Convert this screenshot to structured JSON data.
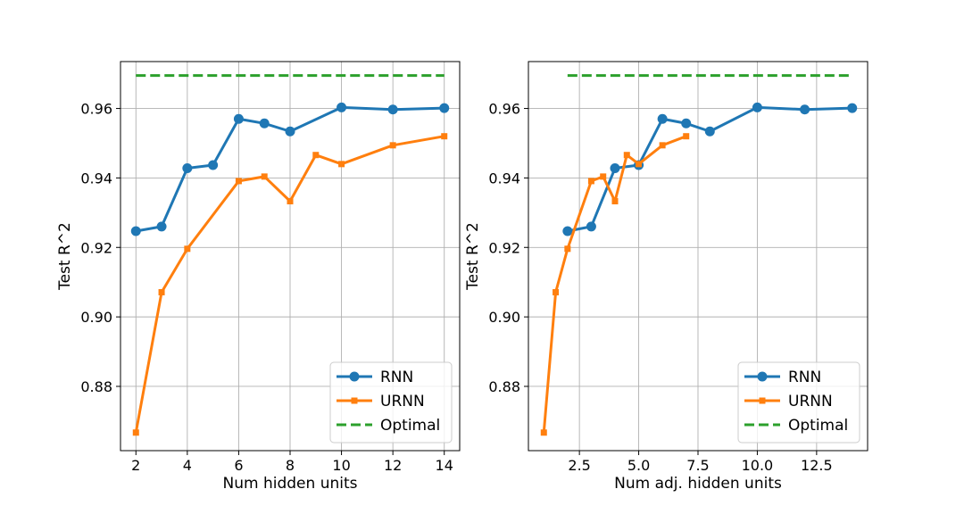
{
  "colors": {
    "rnn": "#1f77b4",
    "urnn": "#ff7f0e",
    "optimal": "#2ca02c",
    "grid": "#b0b0b0",
    "axes": "#000000"
  },
  "chart_data": [
    {
      "type": "line",
      "xlabel": "Num hidden units",
      "ylabel": "Test R^2",
      "xlim": [
        1.4,
        14.6
      ],
      "ylim": [
        0.8615,
        0.9735
      ],
      "xticks": [
        2,
        4,
        6,
        8,
        10,
        12,
        14
      ],
      "xtick_labels": [
        "2",
        "4",
        "6",
        "8",
        "10",
        "12",
        "14"
      ],
      "yticks": [
        0.88,
        0.9,
        0.92,
        0.94,
        0.96
      ],
      "ytick_labels": [
        "0.88",
        "0.90",
        "0.92",
        "0.94",
        "0.96"
      ],
      "grid": true,
      "legend_position": "lower-right",
      "series": [
        {
          "name": "RNN",
          "style": "solid-circle",
          "color": "#1f77b4",
          "x": [
            2,
            3,
            4,
            5,
            6,
            7,
            8,
            10,
            12,
            14
          ],
          "y": [
            0.9247,
            0.926,
            0.9428,
            0.9437,
            0.957,
            0.9557,
            0.9534,
            0.9603,
            0.9597,
            0.9601
          ]
        },
        {
          "name": "URNN",
          "style": "solid-square",
          "color": "#ff7f0e",
          "x": [
            2,
            3,
            4,
            6,
            7,
            8,
            9,
            10,
            12,
            14
          ],
          "y": [
            0.8667,
            0.9071,
            0.9196,
            0.9391,
            0.9404,
            0.9333,
            0.9466,
            0.944,
            0.9494,
            0.952
          ]
        },
        {
          "name": "Optimal",
          "style": "dashed",
          "color": "#2ca02c",
          "x": [
            2,
            14
          ],
          "y": [
            0.9695,
            0.9695
          ]
        }
      ]
    },
    {
      "type": "line",
      "xlabel": "Num adj. hidden units",
      "ylabel": "Test R^2",
      "xlim": [
        0.35,
        14.65
      ],
      "ylim": [
        0.8615,
        0.9735
      ],
      "xticks": [
        2.5,
        5.0,
        7.5,
        10.0,
        12.5
      ],
      "xtick_labels": [
        "2.5",
        "5.0",
        "7.5",
        "10.0",
        "12.5"
      ],
      "yticks": [
        0.88,
        0.9,
        0.92,
        0.94,
        0.96
      ],
      "ytick_labels": [
        "0.88",
        "0.90",
        "0.92",
        "0.94",
        "0.96"
      ],
      "grid": true,
      "legend_position": "lower-right",
      "series": [
        {
          "name": "RNN",
          "style": "solid-circle",
          "color": "#1f77b4",
          "x": [
            2,
            3,
            4,
            5,
            6,
            7,
            8,
            10,
            12,
            14
          ],
          "y": [
            0.9247,
            0.926,
            0.9428,
            0.9437,
            0.957,
            0.9557,
            0.9534,
            0.9603,
            0.9597,
            0.9601
          ]
        },
        {
          "name": "URNN",
          "style": "solid-square",
          "color": "#ff7f0e",
          "x": [
            1,
            1.5,
            2,
            3,
            3.5,
            4,
            4.5,
            5,
            6,
            7
          ],
          "y": [
            0.8667,
            0.9071,
            0.9196,
            0.9391,
            0.9404,
            0.9333,
            0.9466,
            0.944,
            0.9494,
            0.952
          ]
        },
        {
          "name": "Optimal",
          "style": "dashed",
          "color": "#2ca02c",
          "x": [
            2,
            14
          ],
          "y": [
            0.9695,
            0.9695
          ]
        }
      ]
    }
  ]
}
